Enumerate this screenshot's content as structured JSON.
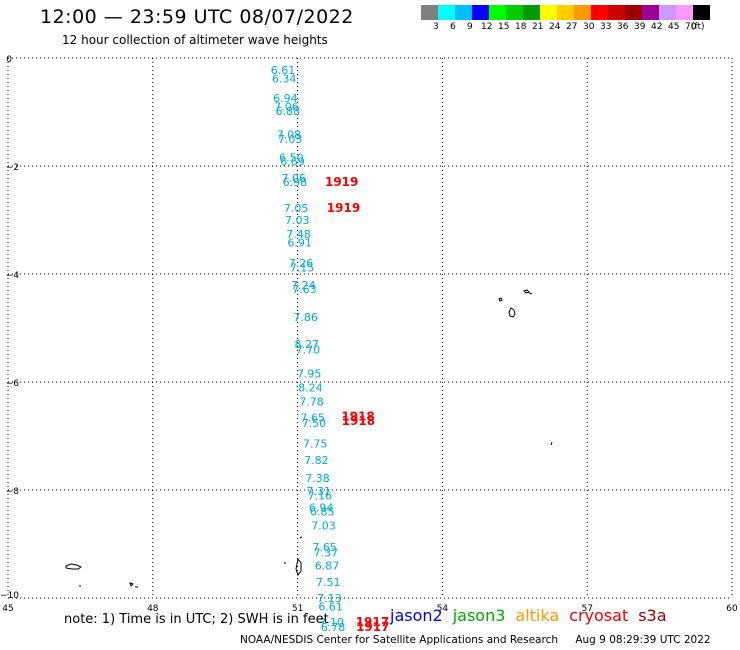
{
  "title": "12:00 — 23:59 UTC 08/07/2022",
  "subtitle": "12 hour collection of altimeter wave heights",
  "legend": {
    "colors": [
      "#808080",
      "#00ffff",
      "#00bfff",
      "#0000ff",
      "#00ff00",
      "#00cc00",
      "#009900",
      "#ffff00",
      "#ffcc00",
      "#ff9900",
      "#ff0000",
      "#cc0000",
      "#990000",
      "#990099",
      "#cc99ff",
      "#ff99ff",
      "#000000"
    ],
    "labels": [
      "3",
      "6",
      "9",
      "12",
      "15",
      "18",
      "21",
      "24",
      "27",
      "30",
      "33",
      "36",
      "39",
      "42",
      "45",
      "70",
      "(ft)"
    ]
  },
  "axes": {
    "x_ticks": [
      "45",
      "48",
      "51",
      "54",
      "57",
      "60"
    ],
    "y_ticks": [
      "0",
      "−2",
      "−4",
      "−6",
      "−8",
      "−10"
    ]
  },
  "wave_heights": [
    {
      "lat": -0.22,
      "value": "6.61"
    },
    {
      "lat": -0.38,
      "value": "6.34"
    },
    {
      "lat": -0.74,
      "value": "6.94"
    },
    {
      "lat": -0.9,
      "value": "7.06"
    },
    {
      "lat": -0.98,
      "value": "6.88"
    },
    {
      "lat": -1.42,
      "value": "7.08"
    },
    {
      "lat": -1.5,
      "value": "7.03"
    },
    {
      "lat": -1.84,
      "value": "6.50"
    },
    {
      "lat": -1.92,
      "value": "6.69"
    },
    {
      "lat": -2.22,
      "value": "7.06"
    },
    {
      "lat": -2.3,
      "value": "6.98"
    },
    {
      "lat": -2.78,
      "value": "7.05"
    },
    {
      "lat": -3.0,
      "value": "7.03"
    },
    {
      "lat": -3.26,
      "value": "7.48"
    },
    {
      "lat": -3.42,
      "value": "6.91"
    },
    {
      "lat": -3.8,
      "value": "7.26"
    },
    {
      "lat": -3.88,
      "value": "7.15"
    },
    {
      "lat": -4.2,
      "value": "7.24"
    },
    {
      "lat": -4.28,
      "value": "7.63"
    },
    {
      "lat": -4.8,
      "value": "7.86"
    },
    {
      "lat": -5.3,
      "value": "8.27"
    },
    {
      "lat": -5.4,
      "value": "7.70"
    },
    {
      "lat": -5.84,
      "value": "7.95"
    },
    {
      "lat": -6.1,
      "value": "8.24"
    },
    {
      "lat": -6.36,
      "value": "7.78"
    },
    {
      "lat": -6.66,
      "value": "7.65"
    },
    {
      "lat": -6.76,
      "value": "7.50"
    },
    {
      "lat": -7.14,
      "value": "7.75"
    },
    {
      "lat": -7.44,
      "value": "7.82"
    },
    {
      "lat": -7.78,
      "value": "7.38"
    },
    {
      "lat": -8.02,
      "value": "7.31"
    },
    {
      "lat": -8.1,
      "value": "7.16"
    },
    {
      "lat": -8.32,
      "value": "6.94"
    },
    {
      "lat": -8.4,
      "value": "6.85"
    },
    {
      "lat": -8.66,
      "value": "7.03"
    },
    {
      "lat": -9.06,
      "value": "7.65"
    },
    {
      "lat": -9.16,
      "value": "7.37"
    },
    {
      "lat": -9.4,
      "value": "6.87"
    },
    {
      "lat": -9.7,
      "value": "7.51"
    },
    {
      "lat": -10.0,
      "value": "7.13"
    },
    {
      "lat": -10.16,
      "value": "6.61"
    },
    {
      "lat": -10.44,
      "value": "7.10"
    },
    {
      "lat": -10.54,
      "value": "6.78"
    }
  ],
  "time_labels": [
    {
      "lat": -2.3,
      "value": "1919"
    },
    {
      "lat": -2.78,
      "value": "1919"
    },
    {
      "lat": -6.64,
      "value": "1918"
    },
    {
      "lat": -6.72,
      "value": "1918"
    },
    {
      "lat": -10.44,
      "value": "1917"
    },
    {
      "lat": -10.54,
      "value": "1917"
    }
  ],
  "note": "note:  1) Time is in UTC;  2) SWH is in feet",
  "satellites": [
    {
      "name": "jason2",
      "color": "#0000ff"
    },
    {
      "name": "jason3",
      "color": "#00aa00"
    },
    {
      "name": "altika",
      "color": "#ff9900"
    },
    {
      "name": "cryosat",
      "color": "#ff0000"
    },
    {
      "name": "s3a",
      "color": "#990000"
    }
  ],
  "credit": {
    "org": "NOAA/NESDIS Center for Satellite Applications and Research",
    "timestamp": "Aug  9 08:29:39 UTC 2022"
  }
}
